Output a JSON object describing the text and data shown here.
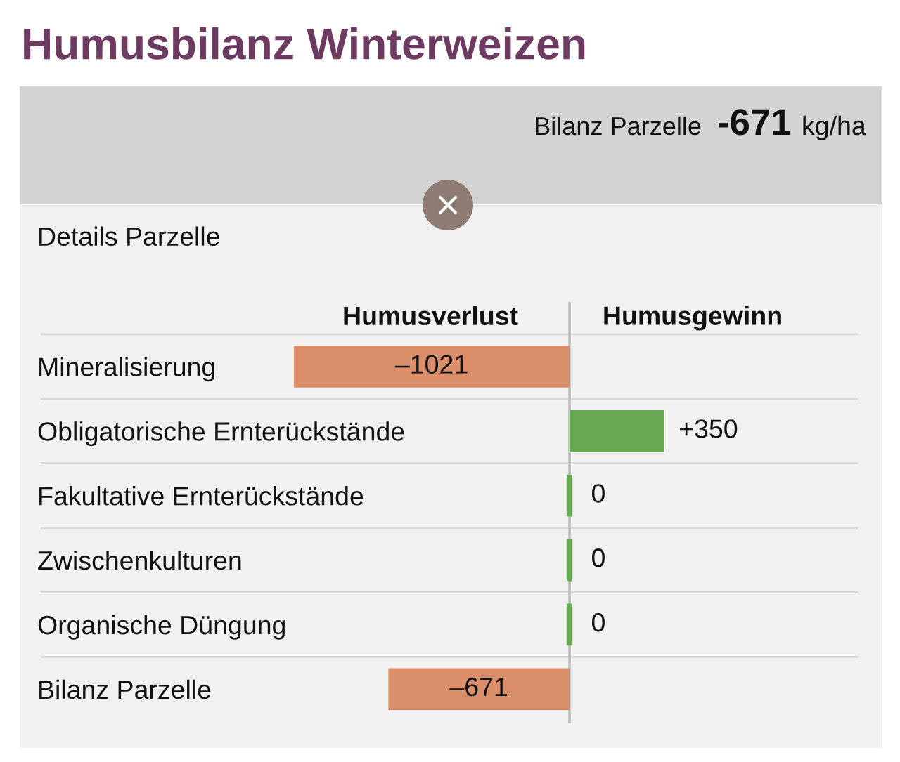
{
  "chart_data": {
    "type": "bar",
    "orientation": "horizontal",
    "title": "Humusbilanz Winterweizen",
    "subtitle": "Details Parzelle",
    "annotations": [
      "Bilanz Parzelle",
      "-671",
      "kg/ha",
      "Humusverlust",
      "Humusgewinn"
    ],
    "categories": [
      "Mineralisierung",
      "Obligatorische Ernterückstände",
      "Fakultative Ernterückstände",
      "Zwischenkulturen",
      "Organische Düngung",
      "Bilanz Parzelle"
    ],
    "values": [
      -1021,
      350,
      0,
      0,
      0,
      -671
    ],
    "colors": [
      "#da8e6a",
      "#68a853",
      "#68a853",
      "#68a853",
      "#68a853",
      "#da8e6a"
    ],
    "value_labels": [
      "–1021",
      "+350",
      "0",
      "0",
      "0",
      "–671"
    ],
    "ref_lines": [
      {
        "axis": "x",
        "value": 0,
        "color": "#bcbbbb"
      }
    ],
    "grid": "y",
    "tick_labels": "y"
  }
}
